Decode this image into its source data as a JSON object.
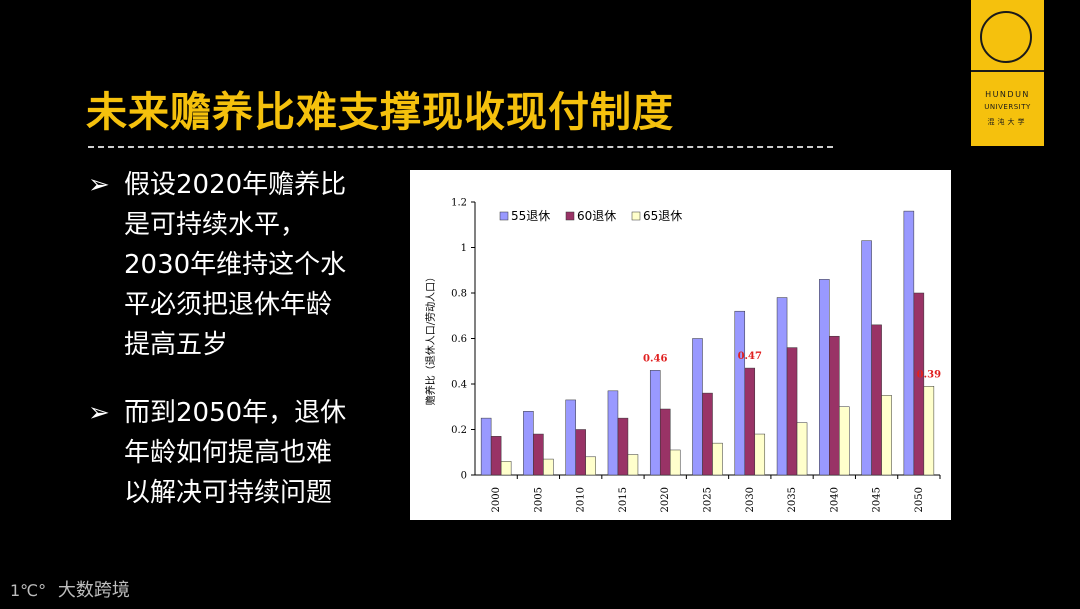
{
  "logo": {
    "line1": "HUNDUN",
    "line2": "UNIVERSITY",
    "line3": "混沌大学",
    "color": "#F5C10D"
  },
  "title": "未来赡养比难支撑现收现付制度",
  "bullets": [
    {
      "arrow": "➢",
      "lines": [
        "假设2020年赡养比",
        "是可持续水平，",
        "2030年维持这个水",
        "平必须把退休年龄",
        "提高五岁"
      ]
    },
    {
      "arrow": "➢",
      "lines": [
        "而到2050年，退休",
        "年龄如何提高也难",
        "以解决可持续问题"
      ]
    }
  ],
  "watermark": {
    "icon": "1℃°",
    "text": "大数跨境"
  },
  "chart_data": {
    "type": "bar",
    "title": "",
    "xlabel": "",
    "ylabel": "赡养比（退休人口/劳动人口）",
    "ylim": [
      0,
      1.2
    ],
    "yticks": [
      "0",
      "0.2",
      "0.4",
      "0.6",
      "0.8",
      "1",
      "1.2"
    ],
    "categories": [
      "2000",
      "2005",
      "2010",
      "2015",
      "2020",
      "2025",
      "2030",
      "2035",
      "2040",
      "2045",
      "2050"
    ],
    "series": [
      {
        "name": "55退休",
        "color": "#9999FF",
        "values": [
          0.25,
          0.28,
          0.33,
          0.37,
          0.46,
          0.6,
          0.72,
          0.78,
          0.86,
          1.03,
          1.16
        ]
      },
      {
        "name": "60退休",
        "color": "#993366",
        "values": [
          0.17,
          0.18,
          0.2,
          0.25,
          0.29,
          0.36,
          0.47,
          0.56,
          0.61,
          0.66,
          0.8
        ]
      },
      {
        "name": "65退休",
        "color": "#FFFFCC",
        "values": [
          0.06,
          0.07,
          0.08,
          0.09,
          0.11,
          0.14,
          0.18,
          0.23,
          0.3,
          0.35,
          0.39
        ]
      }
    ],
    "legend_position": "top-left",
    "grid": false,
    "annotations": [
      {
        "text": "0.46",
        "category": "2020",
        "series": "55退休",
        "color": "#E02020"
      },
      {
        "text": "0.47",
        "category": "2030",
        "series": "60退休",
        "color": "#E02020"
      },
      {
        "text": "0.39",
        "category": "2050",
        "series": "65退休",
        "color": "#E02020"
      }
    ]
  }
}
